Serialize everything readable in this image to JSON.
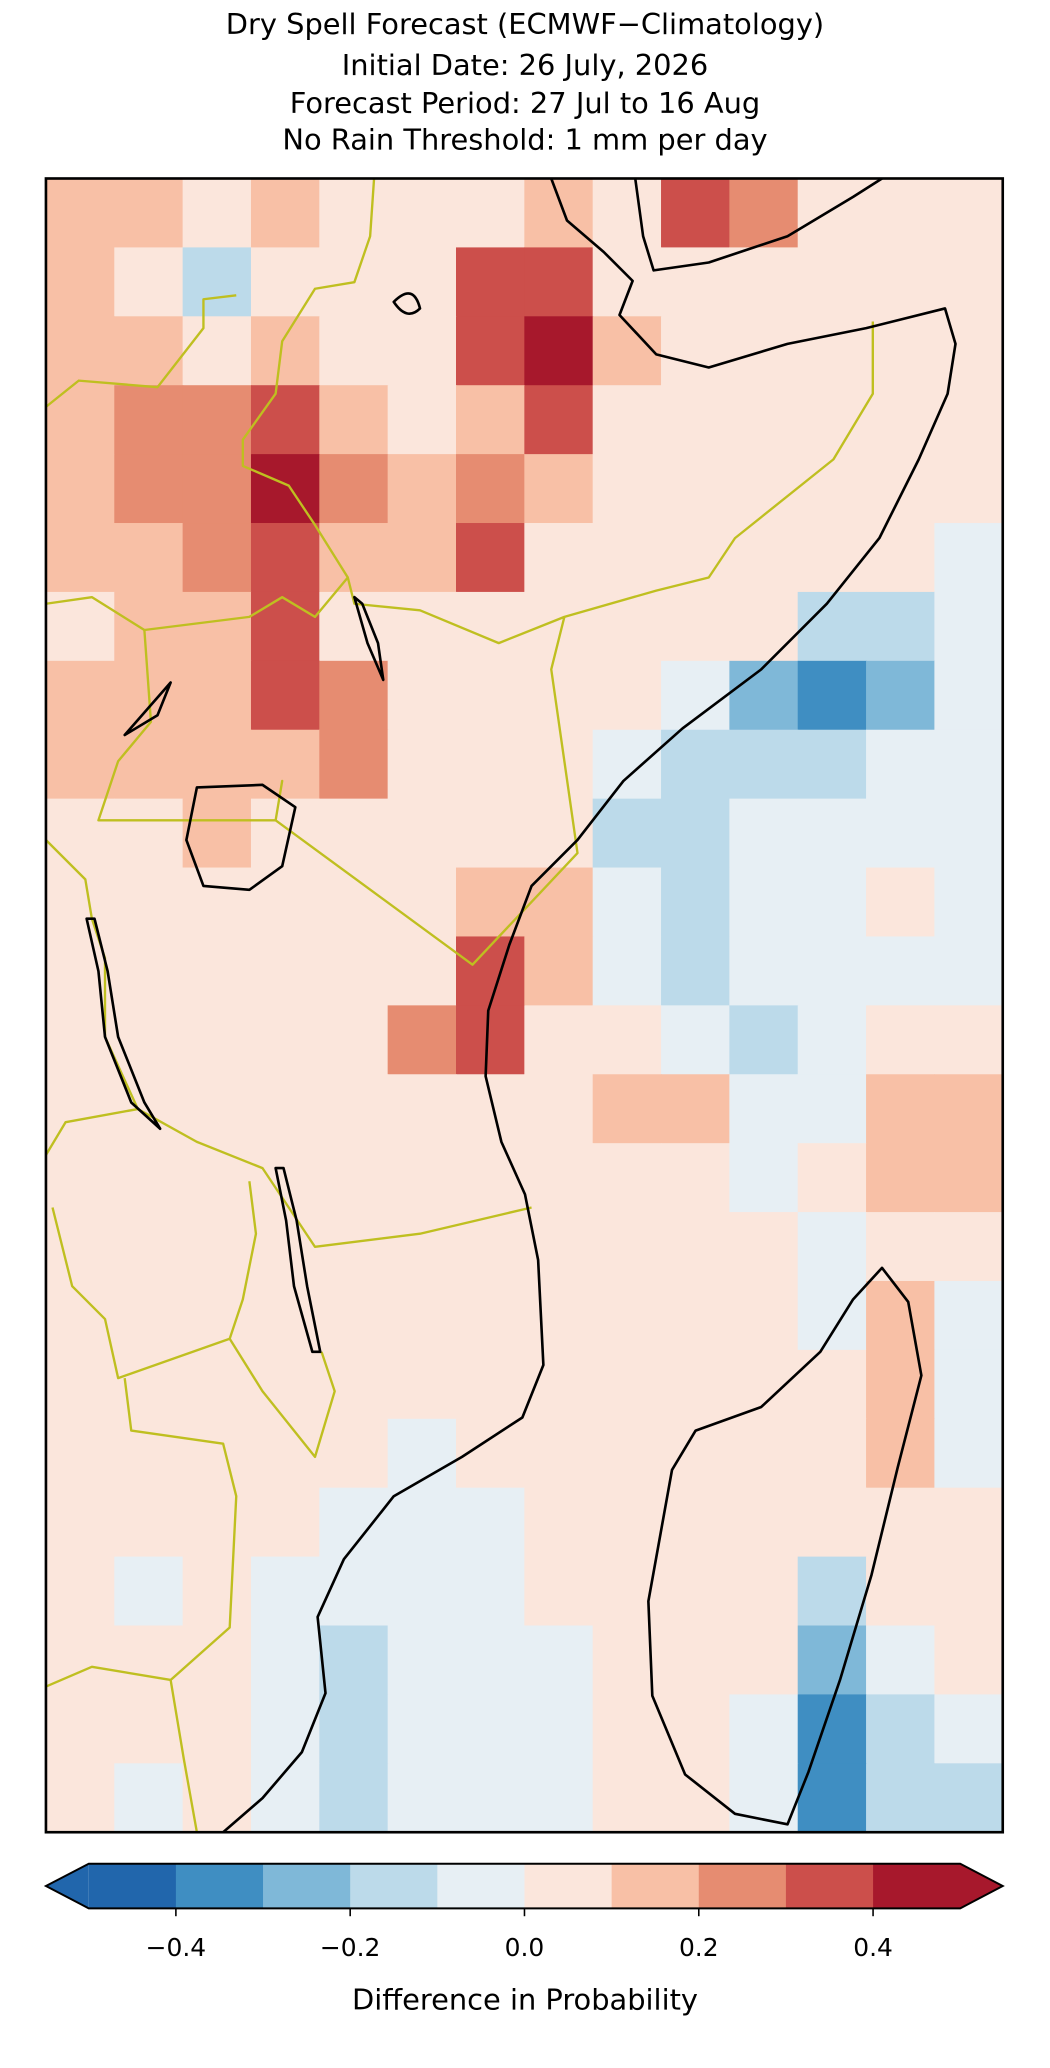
{
  "chart_data": {
    "type": "heatmap",
    "title": [
      "Dry Spell Forecast (ECMWF−Climatology)",
      "Initial Date: 26 July, 2026",
      "Forecast Period: 27 Jul to 16 Aug",
      "No Rain Threshold: 1 mm per day"
    ],
    "grid": [
      [
        0.15,
        0.15,
        0.05,
        0.15,
        0.05,
        0.05,
        0.05,
        0.15,
        0.05,
        0.35,
        0.25,
        0.05,
        0.05,
        0.05
      ],
      [
        0.15,
        0.05,
        -0.15,
        0.05,
        0.05,
        0.05,
        0.35,
        0.35,
        0.05,
        0.05,
        0.05,
        0.05,
        0.05,
        0.05
      ],
      [
        0.15,
        0.15,
        0.05,
        0.15,
        0.05,
        0.05,
        0.35,
        0.45,
        0.15,
        0.05,
        0.05,
        0.05,
        0.05,
        0.05
      ],
      [
        0.15,
        0.25,
        0.25,
        0.35,
        0.15,
        0.05,
        0.15,
        0.35,
        0.05,
        0.05,
        0.05,
        0.05,
        0.05,
        0.05
      ],
      [
        0.15,
        0.25,
        0.25,
        0.45,
        0.25,
        0.15,
        0.25,
        0.15,
        0.05,
        0.05,
        0.05,
        0.05,
        0.05,
        0.05
      ],
      [
        0.15,
        0.15,
        0.25,
        0.35,
        0.15,
        0.15,
        0.35,
        0.05,
        0.05,
        0.05,
        0.05,
        0.05,
        0.05,
        -0.05
      ],
      [
        0.05,
        0.15,
        0.15,
        0.35,
        0.05,
        0.05,
        0.05,
        0.05,
        0.05,
        0.05,
        0.05,
        -0.15,
        -0.15,
        -0.05
      ],
      [
        0.15,
        0.15,
        0.15,
        0.35,
        0.25,
        0.05,
        0.05,
        0.05,
        0.05,
        -0.05,
        -0.25,
        -0.35,
        -0.25,
        -0.05
      ],
      [
        0.15,
        0.15,
        0.15,
        0.15,
        0.25,
        0.05,
        0.05,
        0.05,
        -0.05,
        -0.15,
        -0.15,
        -0.15,
        -0.05,
        -0.05
      ],
      [
        0.05,
        0.05,
        0.15,
        0.05,
        0.05,
        0.05,
        0.05,
        0.05,
        -0.15,
        -0.15,
        -0.05,
        -0.05,
        -0.05,
        -0.05
      ],
      [
        0.05,
        0.05,
        0.05,
        0.05,
        0.05,
        0.05,
        0.15,
        0.15,
        -0.05,
        -0.15,
        -0.05,
        -0.05,
        0.05,
        -0.05
      ],
      [
        0.05,
        0.05,
        0.05,
        0.05,
        0.05,
        0.05,
        0.35,
        0.15,
        -0.05,
        -0.15,
        -0.05,
        -0.05,
        -0.05,
        -0.05
      ],
      [
        0.05,
        0.05,
        0.05,
        0.05,
        0.05,
        0.25,
        0.35,
        0.05,
        0.05,
        -0.05,
        -0.15,
        -0.05,
        0.05,
        0.05
      ],
      [
        0.05,
        0.05,
        0.05,
        0.05,
        0.05,
        0.05,
        0.05,
        0.05,
        0.15,
        0.15,
        -0.05,
        -0.05,
        0.15,
        0.15
      ],
      [
        0.05,
        0.05,
        0.05,
        0.05,
        0.05,
        0.05,
        0.05,
        0.05,
        0.05,
        0.05,
        -0.05,
        0.05,
        0.15,
        0.15
      ],
      [
        0.05,
        0.05,
        0.05,
        0.05,
        0.05,
        0.05,
        0.05,
        0.05,
        0.05,
        0.05,
        0.05,
        -0.05,
        0.05,
        0.05
      ],
      [
        0.05,
        0.05,
        0.05,
        0.05,
        0.05,
        0.05,
        0.05,
        0.05,
        0.05,
        0.05,
        0.05,
        -0.05,
        0.15,
        -0.05
      ],
      [
        0.05,
        0.05,
        0.05,
        0.05,
        0.05,
        0.05,
        0.05,
        0.05,
        0.05,
        0.05,
        0.05,
        0.05,
        0.15,
        -0.05
      ],
      [
        0.05,
        0.05,
        0.05,
        0.05,
        0.05,
        -0.05,
        0.05,
        0.05,
        0.05,
        0.05,
        0.05,
        0.05,
        0.15,
        -0.05
      ],
      [
        0.05,
        0.05,
        0.05,
        0.05,
        -0.05,
        -0.05,
        -0.05,
        0.05,
        0.05,
        0.05,
        0.05,
        0.05,
        0.05,
        0.05
      ],
      [
        0.05,
        -0.05,
        0.05,
        -0.05,
        -0.05,
        -0.05,
        -0.05,
        0.05,
        0.05,
        0.05,
        0.05,
        -0.15,
        0.05,
        0.05
      ],
      [
        0.05,
        0.05,
        0.05,
        -0.05,
        -0.15,
        -0.05,
        -0.05,
        -0.05,
        0.05,
        0.05,
        0.05,
        -0.25,
        -0.05,
        0.05
      ],
      [
        0.05,
        0.05,
        0.05,
        -0.05,
        -0.15,
        -0.05,
        -0.05,
        -0.05,
        0.05,
        0.05,
        -0.05,
        -0.35,
        -0.15,
        -0.05
      ],
      [
        0.05,
        -0.05,
        0.05,
        -0.05,
        -0.15,
        -0.05,
        -0.05,
        -0.05,
        0.05,
        0.05,
        -0.05,
        -0.35,
        -0.15,
        -0.15
      ]
    ],
    "colorbar": {
      "label": "Difference in Probability",
      "levels": [
        -0.5,
        -0.4,
        -0.3,
        -0.2,
        -0.1,
        0,
        0.1,
        0.2,
        0.3,
        0.4,
        0.5
      ],
      "colors": [
        "#2166ac",
        "#3f8ec2",
        "#7fb8d8",
        "#bcdaea",
        "#e7eff4",
        "#fbe6dc",
        "#f8c0a6",
        "#e68c71",
        "#cc4f4b",
        "#a7182c"
      ],
      "extend": "both",
      "ticks": [
        {
          "value": -0.4,
          "label": "−0.4"
        },
        {
          "value": -0.2,
          "label": "−0.2"
        },
        {
          "value": 0,
          "label": "0.0"
        },
        0.2,
        0.4
      ]
    }
  }
}
